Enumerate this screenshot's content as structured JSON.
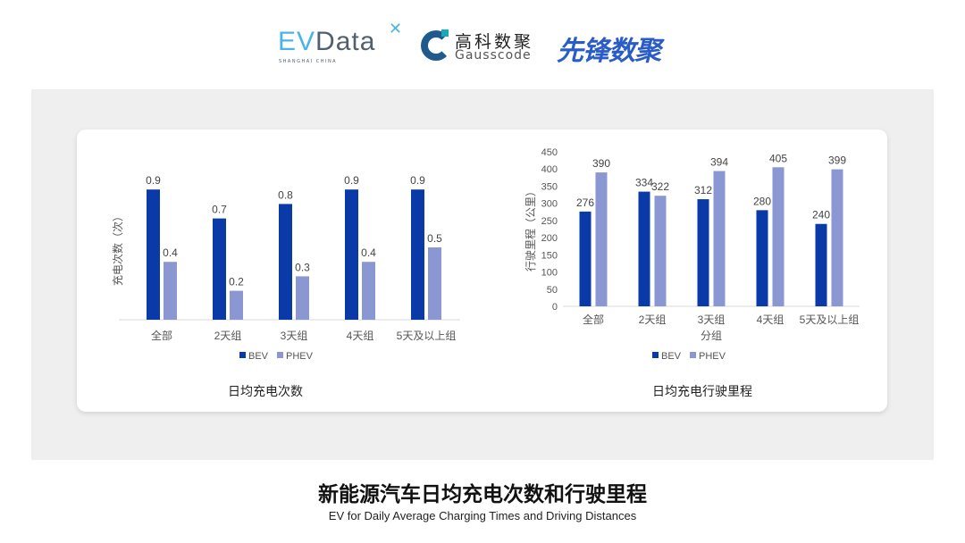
{
  "logos": {
    "evdata": {
      "main": "EVData",
      "sub": "SHANGHAI CHINA"
    },
    "gausscode": {
      "cn": "高科数聚",
      "en": "Gausscode"
    },
    "xianfeng": "先锋数聚"
  },
  "colors": {
    "BEV": "#0a3aa8",
    "PHEV": "#8a97d2",
    "panel": "#efefef"
  },
  "chart_data": [
    {
      "type": "bar",
      "title": "日均充电次数",
      "ylabel": "充电次数（次）",
      "xlabel": "",
      "categories": [
        "全部",
        "2天组",
        "3天组",
        "4天组",
        "5天及以上组"
      ],
      "series": [
        {
          "name": "BEV",
          "values": [
            0.9,
            0.7,
            0.8,
            0.9,
            0.9
          ]
        },
        {
          "name": "PHEV",
          "values": [
            0.4,
            0.2,
            0.3,
            0.4,
            0.5
          ]
        }
      ],
      "ylim": [
        0,
        1.0
      ],
      "y_axis_visible": false,
      "grid": false,
      "legend": "bottom"
    },
    {
      "type": "bar",
      "title": "日均充电行驶里程",
      "ylabel": "行驶里程（公里）",
      "xlabel": "分组",
      "categories": [
        "全部",
        "2天组",
        "3天组",
        "4天组",
        "5天及以上组"
      ],
      "series": [
        {
          "name": "BEV",
          "values": [
            276,
            334,
            312,
            280,
            240
          ]
        },
        {
          "name": "PHEV",
          "values": [
            390,
            322,
            394,
            405,
            399
          ]
        }
      ],
      "ylim": [
        0,
        450
      ],
      "yticks": [
        0,
        50,
        100,
        150,
        200,
        250,
        300,
        350,
        400,
        450
      ],
      "grid": false,
      "legend": "bottom"
    }
  ],
  "footer": {
    "title": "新能源汽车日均充电次数和行驶里程",
    "subtitle": "EV for Daily Average Charging Times and Driving Distances"
  }
}
